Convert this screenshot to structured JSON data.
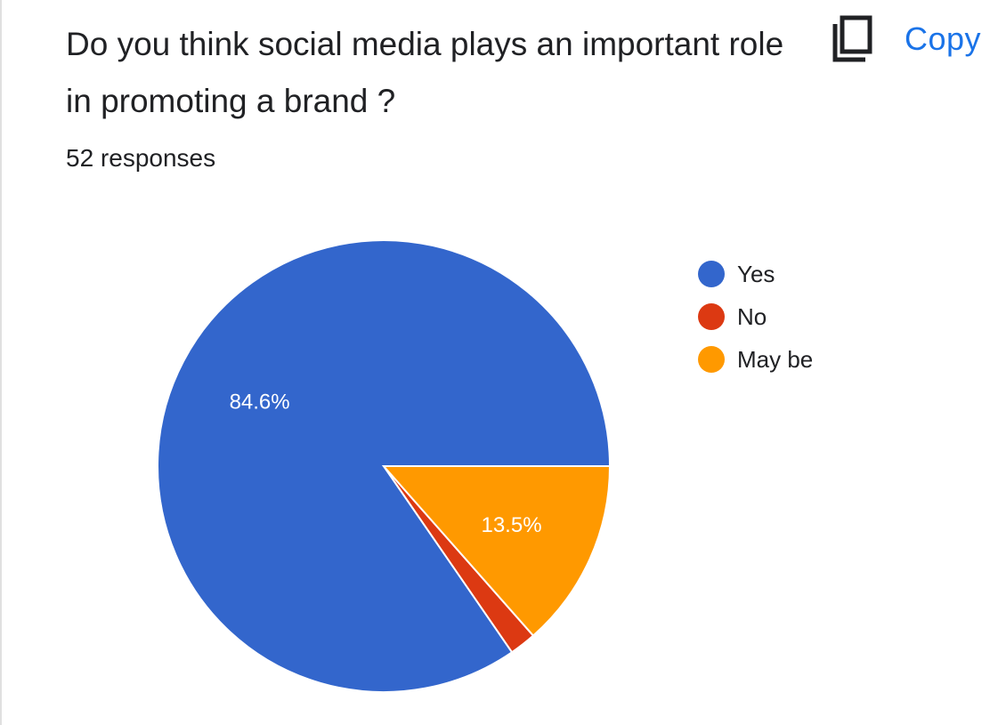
{
  "question": {
    "title": "Do you think social media plays an important role in promoting a brand ?",
    "responses_label": "52 responses"
  },
  "toolbar": {
    "copy_label": "Copy",
    "copy_icon": "copy-icon"
  },
  "colors": {
    "accent": "#1a73e8",
    "text": "#202124"
  },
  "chart_data": {
    "type": "pie",
    "title": "",
    "legend_position": "right",
    "labels": [
      "Yes",
      "No",
      "May be"
    ],
    "values": [
      84.6,
      1.9,
      13.5
    ],
    "data_labels": [
      "84.6%",
      "",
      "13.5%"
    ],
    "colors": [
      "#3366cc",
      "#dc3912",
      "#ff9900"
    ]
  }
}
